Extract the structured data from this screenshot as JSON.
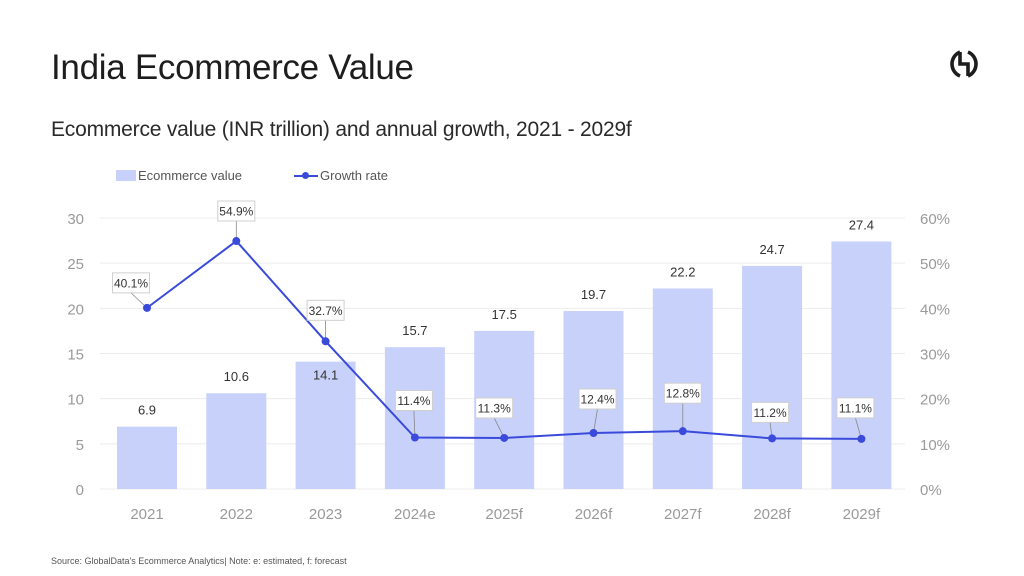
{
  "header": {
    "title": "India Ecommerce Value",
    "subtitle": "Ecommerce value (INR trillion) and annual growth, 2021 - 2029f",
    "logo_icon": "globaldata-logo-icon"
  },
  "footer": {
    "source": "Source: GlobalData's Ecommerce Analytics| Note: e: estimated, f: forecast"
  },
  "colors": {
    "bar": "#c8d1fa",
    "line": "#3a4bdc",
    "grid": "#ececec",
    "axis_text": "#9a9a9a"
  },
  "chart_data": {
    "type": "bar",
    "title": "Ecommerce value (INR trillion) and annual growth, 2021 - 2029f",
    "categories": [
      "2021",
      "2022",
      "2023",
      "2024e",
      "2025f",
      "2026f",
      "2027f",
      "2028f",
      "2029f"
    ],
    "series": [
      {
        "name": "Ecommerce value",
        "type": "bar",
        "axis": "left",
        "values": [
          6.9,
          10.6,
          14.1,
          15.7,
          17.5,
          19.7,
          22.2,
          24.7,
          27.4
        ],
        "labels": [
          "6.9",
          "10.6",
          "14.1",
          "15.7",
          "17.5",
          "19.7",
          "22.2",
          "24.7",
          "27.4"
        ]
      },
      {
        "name": "Growth rate",
        "type": "line",
        "axis": "right",
        "values": [
          40.1,
          54.9,
          32.7,
          11.4,
          11.3,
          12.4,
          12.8,
          11.2,
          11.1
        ],
        "labels": [
          "40.1%",
          "54.9%",
          "32.7%",
          "11.4%",
          "11.3%",
          "12.4%",
          "12.8%",
          "11.2%",
          "11.1%"
        ]
      }
    ],
    "y_left": {
      "range": [
        0,
        30
      ],
      "ticks": [
        "0",
        "5",
        "10",
        "15",
        "20",
        "25",
        "30"
      ],
      "tick_values": [
        0,
        5,
        10,
        15,
        20,
        25,
        30
      ]
    },
    "y_right": {
      "range": [
        0,
        60
      ],
      "ticks": [
        "0%",
        "10%",
        "20%",
        "30%",
        "40%",
        "50%",
        "60%"
      ],
      "tick_values": [
        0,
        10,
        20,
        30,
        40,
        50,
        60
      ]
    },
    "xlabel": "",
    "ylabel": "",
    "grid": true,
    "legend": {
      "position": "top-left",
      "entries": [
        "Ecommerce value",
        "Growth rate"
      ]
    }
  }
}
